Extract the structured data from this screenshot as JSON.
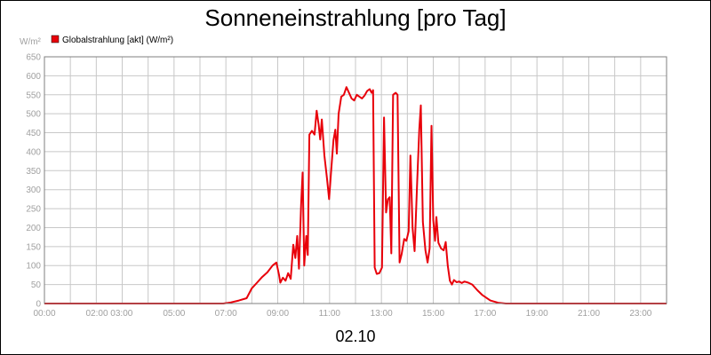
{
  "chart_data": {
    "type": "line",
    "title": "Sonneneinstrahlung [pro Tag]",
    "ylabel": "W/m²",
    "xlabel": "02.10",
    "x_unit": "hours",
    "xlim": [
      0,
      24
    ],
    "ylim": [
      0,
      650
    ],
    "y_ticks": [
      0,
      50,
      100,
      150,
      200,
      250,
      300,
      350,
      400,
      450,
      500,
      550,
      600,
      650
    ],
    "y_tick_labels": [
      "0",
      "50",
      "100",
      "150",
      "200",
      "250",
      "300",
      "350",
      "400",
      "450",
      "500",
      "550",
      "600",
      "650"
    ],
    "x_tick_labels": [
      {
        "x": 0,
        "label": "00:00"
      },
      {
        "x": 2.5,
        "label": "02:00 03:00"
      },
      {
        "x": 5,
        "label": "05:00"
      },
      {
        "x": 7,
        "label": "07:00"
      },
      {
        "x": 9,
        "label": "09:00"
      },
      {
        "x": 11,
        "label": "11:00"
      },
      {
        "x": 13,
        "label": "13:00"
      },
      {
        "x": 15,
        "label": "15:00"
      },
      {
        "x": 17,
        "label": "17:00"
      },
      {
        "x": 19,
        "label": "19:00"
      },
      {
        "x": 21,
        "label": "21:00"
      },
      {
        "x": 23,
        "label": "23:00"
      }
    ],
    "grid": true,
    "legend_position": "top-left",
    "series": [
      {
        "name": "Globalstrahlung [akt] (W/m²)",
        "color": "#e8000a",
        "points": [
          [
            0,
            0
          ],
          [
            6.9,
            0
          ],
          [
            7.2,
            3
          ],
          [
            7.5,
            8
          ],
          [
            7.8,
            14
          ],
          [
            8.0,
            40
          ],
          [
            8.2,
            55
          ],
          [
            8.4,
            70
          ],
          [
            8.6,
            82
          ],
          [
            8.8,
            100
          ],
          [
            8.95,
            108
          ],
          [
            9.05,
            75
          ],
          [
            9.1,
            55
          ],
          [
            9.2,
            68
          ],
          [
            9.3,
            60
          ],
          [
            9.4,
            80
          ],
          [
            9.5,
            65
          ],
          [
            9.6,
            155
          ],
          [
            9.68,
            120
          ],
          [
            9.75,
            178
          ],
          [
            9.82,
            92
          ],
          [
            9.9,
            260
          ],
          [
            9.96,
            345
          ],
          [
            10.02,
            100
          ],
          [
            10.1,
            178
          ],
          [
            10.16,
            128
          ],
          [
            10.22,
            445
          ],
          [
            10.32,
            455
          ],
          [
            10.42,
            445
          ],
          [
            10.5,
            508
          ],
          [
            10.58,
            470
          ],
          [
            10.64,
            432
          ],
          [
            10.7,
            485
          ],
          [
            10.8,
            390
          ],
          [
            10.9,
            330
          ],
          [
            10.98,
            275
          ],
          [
            11.05,
            340
          ],
          [
            11.15,
            430
          ],
          [
            11.22,
            458
          ],
          [
            11.28,
            395
          ],
          [
            11.35,
            500
          ],
          [
            11.45,
            545
          ],
          [
            11.55,
            550
          ],
          [
            11.65,
            570
          ],
          [
            11.75,
            555
          ],
          [
            11.85,
            540
          ],
          [
            11.95,
            535
          ],
          [
            12.05,
            550
          ],
          [
            12.15,
            545
          ],
          [
            12.25,
            540
          ],
          [
            12.35,
            548
          ],
          [
            12.45,
            560
          ],
          [
            12.55,
            565
          ],
          [
            12.62,
            555
          ],
          [
            12.68,
            562
          ],
          [
            12.74,
            95
          ],
          [
            12.82,
            78
          ],
          [
            12.92,
            80
          ],
          [
            13.02,
            95
          ],
          [
            13.1,
            490
          ],
          [
            13.18,
            240
          ],
          [
            13.25,
            275
          ],
          [
            13.32,
            280
          ],
          [
            13.38,
            132
          ],
          [
            13.45,
            550
          ],
          [
            13.55,
            555
          ],
          [
            13.62,
            550
          ],
          [
            13.7,
            108
          ],
          [
            13.78,
            130
          ],
          [
            13.88,
            170
          ],
          [
            13.96,
            165
          ],
          [
            14.05,
            190
          ],
          [
            14.12,
            390
          ],
          [
            14.2,
            200
          ],
          [
            14.28,
            138
          ],
          [
            14.38,
            320
          ],
          [
            14.46,
            460
          ],
          [
            14.52,
            522
          ],
          [
            14.6,
            215
          ],
          [
            14.7,
            140
          ],
          [
            14.78,
            108
          ],
          [
            14.86,
            145
          ],
          [
            14.93,
            468
          ],
          [
            15.0,
            220
          ],
          [
            15.07,
            165
          ],
          [
            15.12,
            228
          ],
          [
            15.2,
            160
          ],
          [
            15.3,
            145
          ],
          [
            15.4,
            140
          ],
          [
            15.48,
            162
          ],
          [
            15.56,
            100
          ],
          [
            15.64,
            60
          ],
          [
            15.72,
            50
          ],
          [
            15.8,
            62
          ],
          [
            15.9,
            56
          ],
          [
            16.0,
            58
          ],
          [
            16.1,
            54
          ],
          [
            16.2,
            58
          ],
          [
            16.35,
            55
          ],
          [
            16.5,
            50
          ],
          [
            16.7,
            35
          ],
          [
            16.9,
            22
          ],
          [
            17.2,
            8
          ],
          [
            17.5,
            2
          ],
          [
            17.8,
            0
          ],
          [
            24,
            0
          ]
        ]
      }
    ]
  }
}
